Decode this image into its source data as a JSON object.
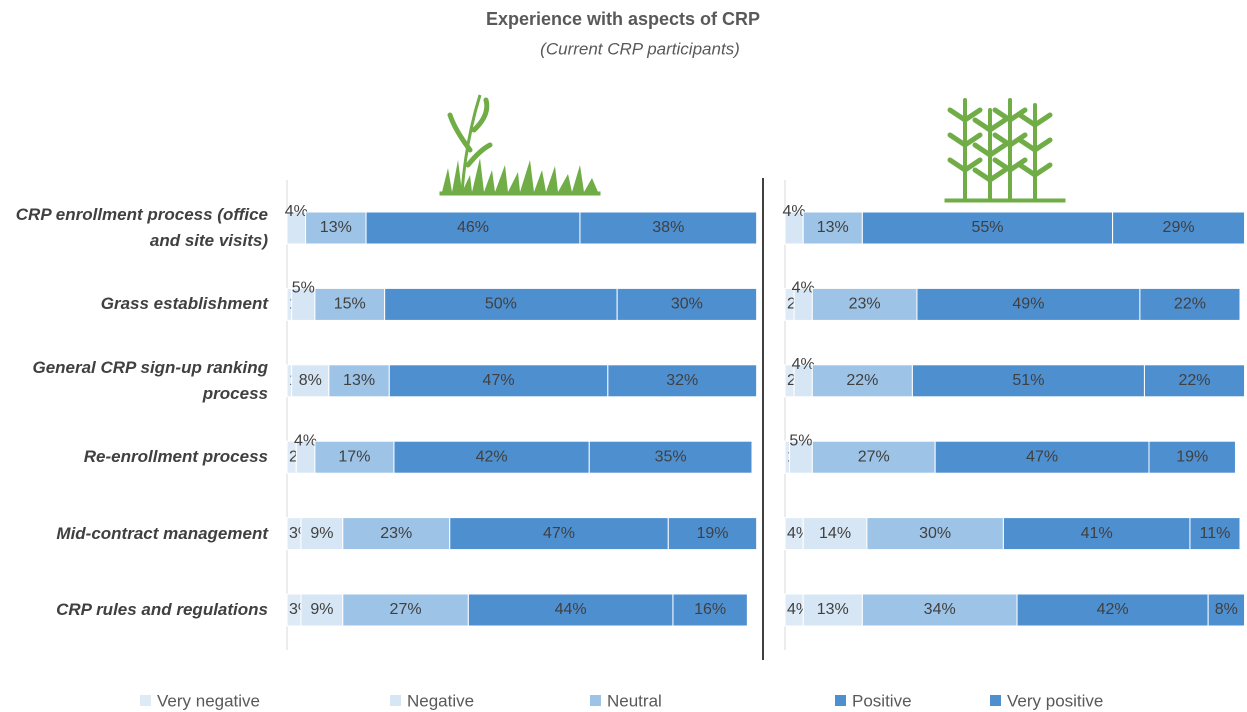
{
  "chart_data": [
    {
      "type": "bar",
      "title": "Experience with aspects of CRP",
      "subtitle": "(Current CRP participants)",
      "categories": [
        "CRP enrollment process (office and site visits)",
        "Grass establishment",
        "General CRP sign-up ranking process",
        "Re-enrollment process",
        "Mid-contract management",
        "CRP rules and regulations"
      ],
      "stacked": true,
      "xlim": [
        0,
        100
      ],
      "series": [
        {
          "name": "Very negative",
          "color": "#deebf7",
          "values": [
            0,
            1,
            1,
            2,
            3,
            3
          ],
          "value_labels": [
            "0%",
            "1%",
            "1%",
            "2%",
            "3%",
            "3%"
          ]
        },
        {
          "name": "Negative",
          "color": "#d6e6f4",
          "values": [
            4,
            5,
            8,
            4,
            9,
            9
          ],
          "value_labels": [
            "4%",
            "5%",
            "8%",
            "4%",
            "9%",
            "9%"
          ]
        },
        {
          "name": "Neutral",
          "color": "#9dc3e6",
          "values": [
            13,
            15,
            13,
            17,
            23,
            27
          ],
          "value_labels": [
            "13%",
            "15%",
            "13%",
            "17%",
            "23%",
            "27%"
          ]
        },
        {
          "name": "Positive",
          "color": "#4e8fd0",
          "values": [
            46,
            50,
            47,
            42,
            47,
            44
          ],
          "value_labels": [
            "46%",
            "50%",
            "47%",
            "42%",
            "47%",
            "44%"
          ]
        },
        {
          "name": "Very positive",
          "color": "#4e8fd0",
          "values": [
            38,
            30,
            32,
            35,
            19,
            16
          ],
          "value_labels": [
            "38%",
            "30%",
            "32%",
            "35%",
            "19%",
            "16%"
          ]
        }
      ]
    },
    {
      "type": "bar",
      "stacked": true,
      "xlim": [
        0,
        100
      ],
      "series": [
        {
          "color": "#deebf7",
          "values": [
            0,
            2,
            2,
            1,
            4,
            4
          ],
          "value_labels": [
            "0%",
            "2%",
            "2%",
            "1%",
            "4%",
            "4%"
          ]
        },
        {
          "color": "#d6e6f4",
          "values": [
            4,
            4,
            4,
            5,
            14,
            13
          ],
          "value_labels": [
            "4%",
            "4%",
            "4%",
            "5%",
            "14%",
            "13%"
          ]
        },
        {
          "color": "#9dc3e6",
          "values": [
            13,
            23,
            22,
            27,
            30,
            34
          ],
          "value_labels": [
            "13%",
            "23%",
            "22%",
            "27%",
            "30%",
            "34%"
          ]
        },
        {
          "color": "#4e8fd0",
          "values": [
            55,
            49,
            51,
            47,
            41,
            42
          ],
          "value_labels": [
            "55%",
            "49%",
            "51%",
            "47%",
            "41%",
            "42%"
          ]
        },
        {
          "color": "#4e8fd0",
          "values": [
            29,
            22,
            22,
            19,
            11,
            8
          ],
          "value_labels": [
            "29%",
            "22%",
            "22%",
            "19%",
            "11%",
            "8%"
          ]
        }
      ]
    }
  ]
}
